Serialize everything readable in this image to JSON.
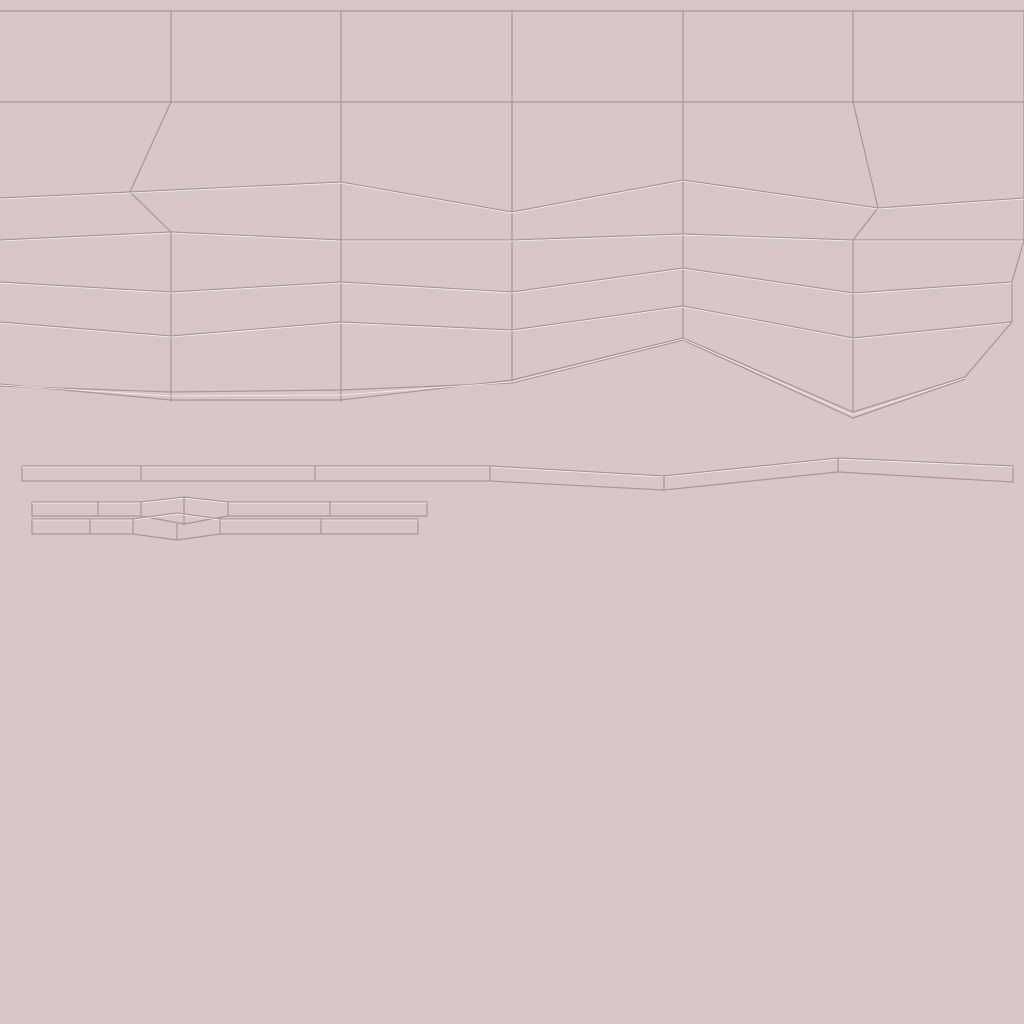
{
  "texture": {
    "kind": "uv-wireframe-layout",
    "background_color": "#d5c7c7",
    "line_color": "#a89898",
    "highlight_color": "#f2ecec",
    "islands": [
      {
        "id": "main-panel-grid"
      },
      {
        "id": "long-strip"
      },
      {
        "id": "small-strip-top"
      },
      {
        "id": "small-strip-bottom"
      }
    ]
  }
}
